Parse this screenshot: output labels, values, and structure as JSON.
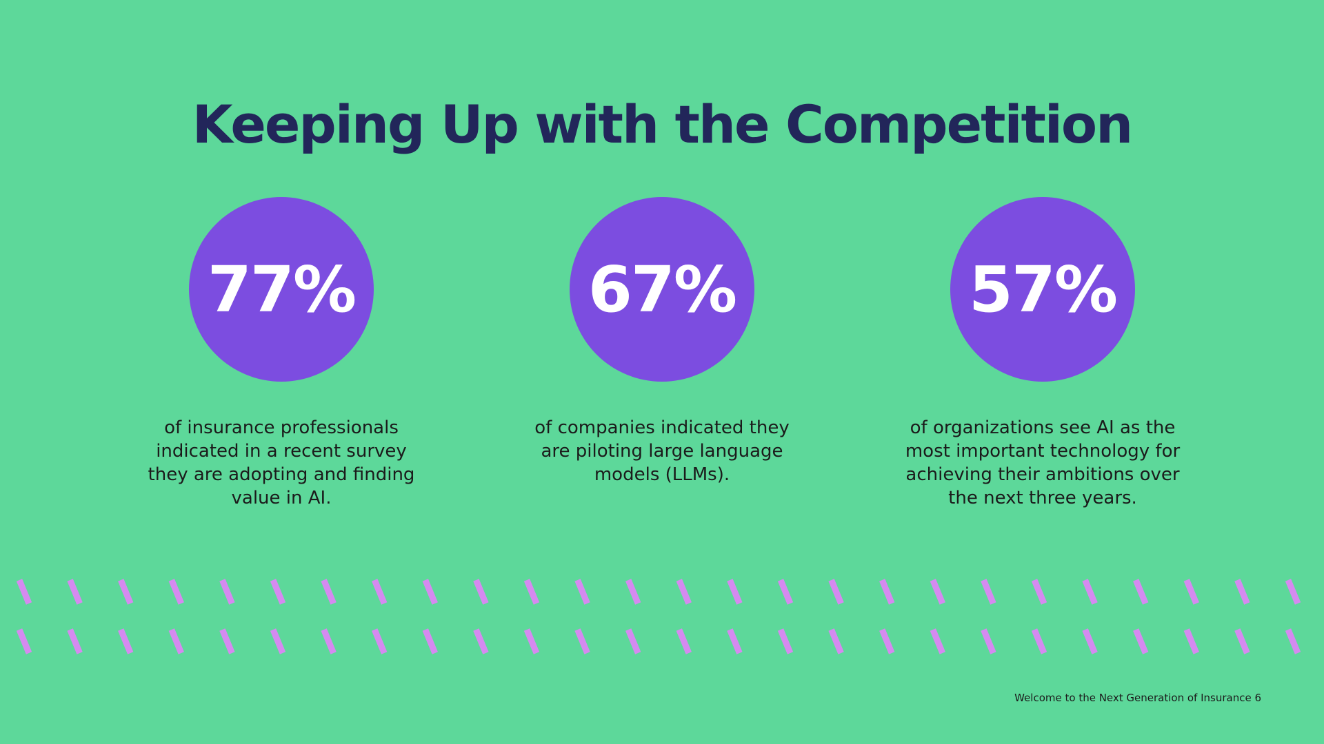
{
  "slide": {
    "title": "Keeping Up with the Competition",
    "stats": [
      {
        "value": "77%",
        "description": "of insurance professionals indicated in a recent survey they are adopting and finding value in AI."
      },
      {
        "value": "67%",
        "description": "of companies indicated they are piloting large language models (LLMs)."
      },
      {
        "value": "57%",
        "description": "of organizations see AI as the most important technology for achieving their ambitions over the next three years."
      }
    ],
    "footer": "Welcome to the Next Generation of Insurance 6"
  },
  "colors": {
    "background": "#5dd89a",
    "title": "#22265a",
    "circle": "#7c4de0",
    "stat_text": "#ffffff",
    "body_text": "#1b1b1b",
    "pattern": "#d58af0"
  },
  "decor": {
    "pattern_rows": 2,
    "pattern_cols": 26
  }
}
